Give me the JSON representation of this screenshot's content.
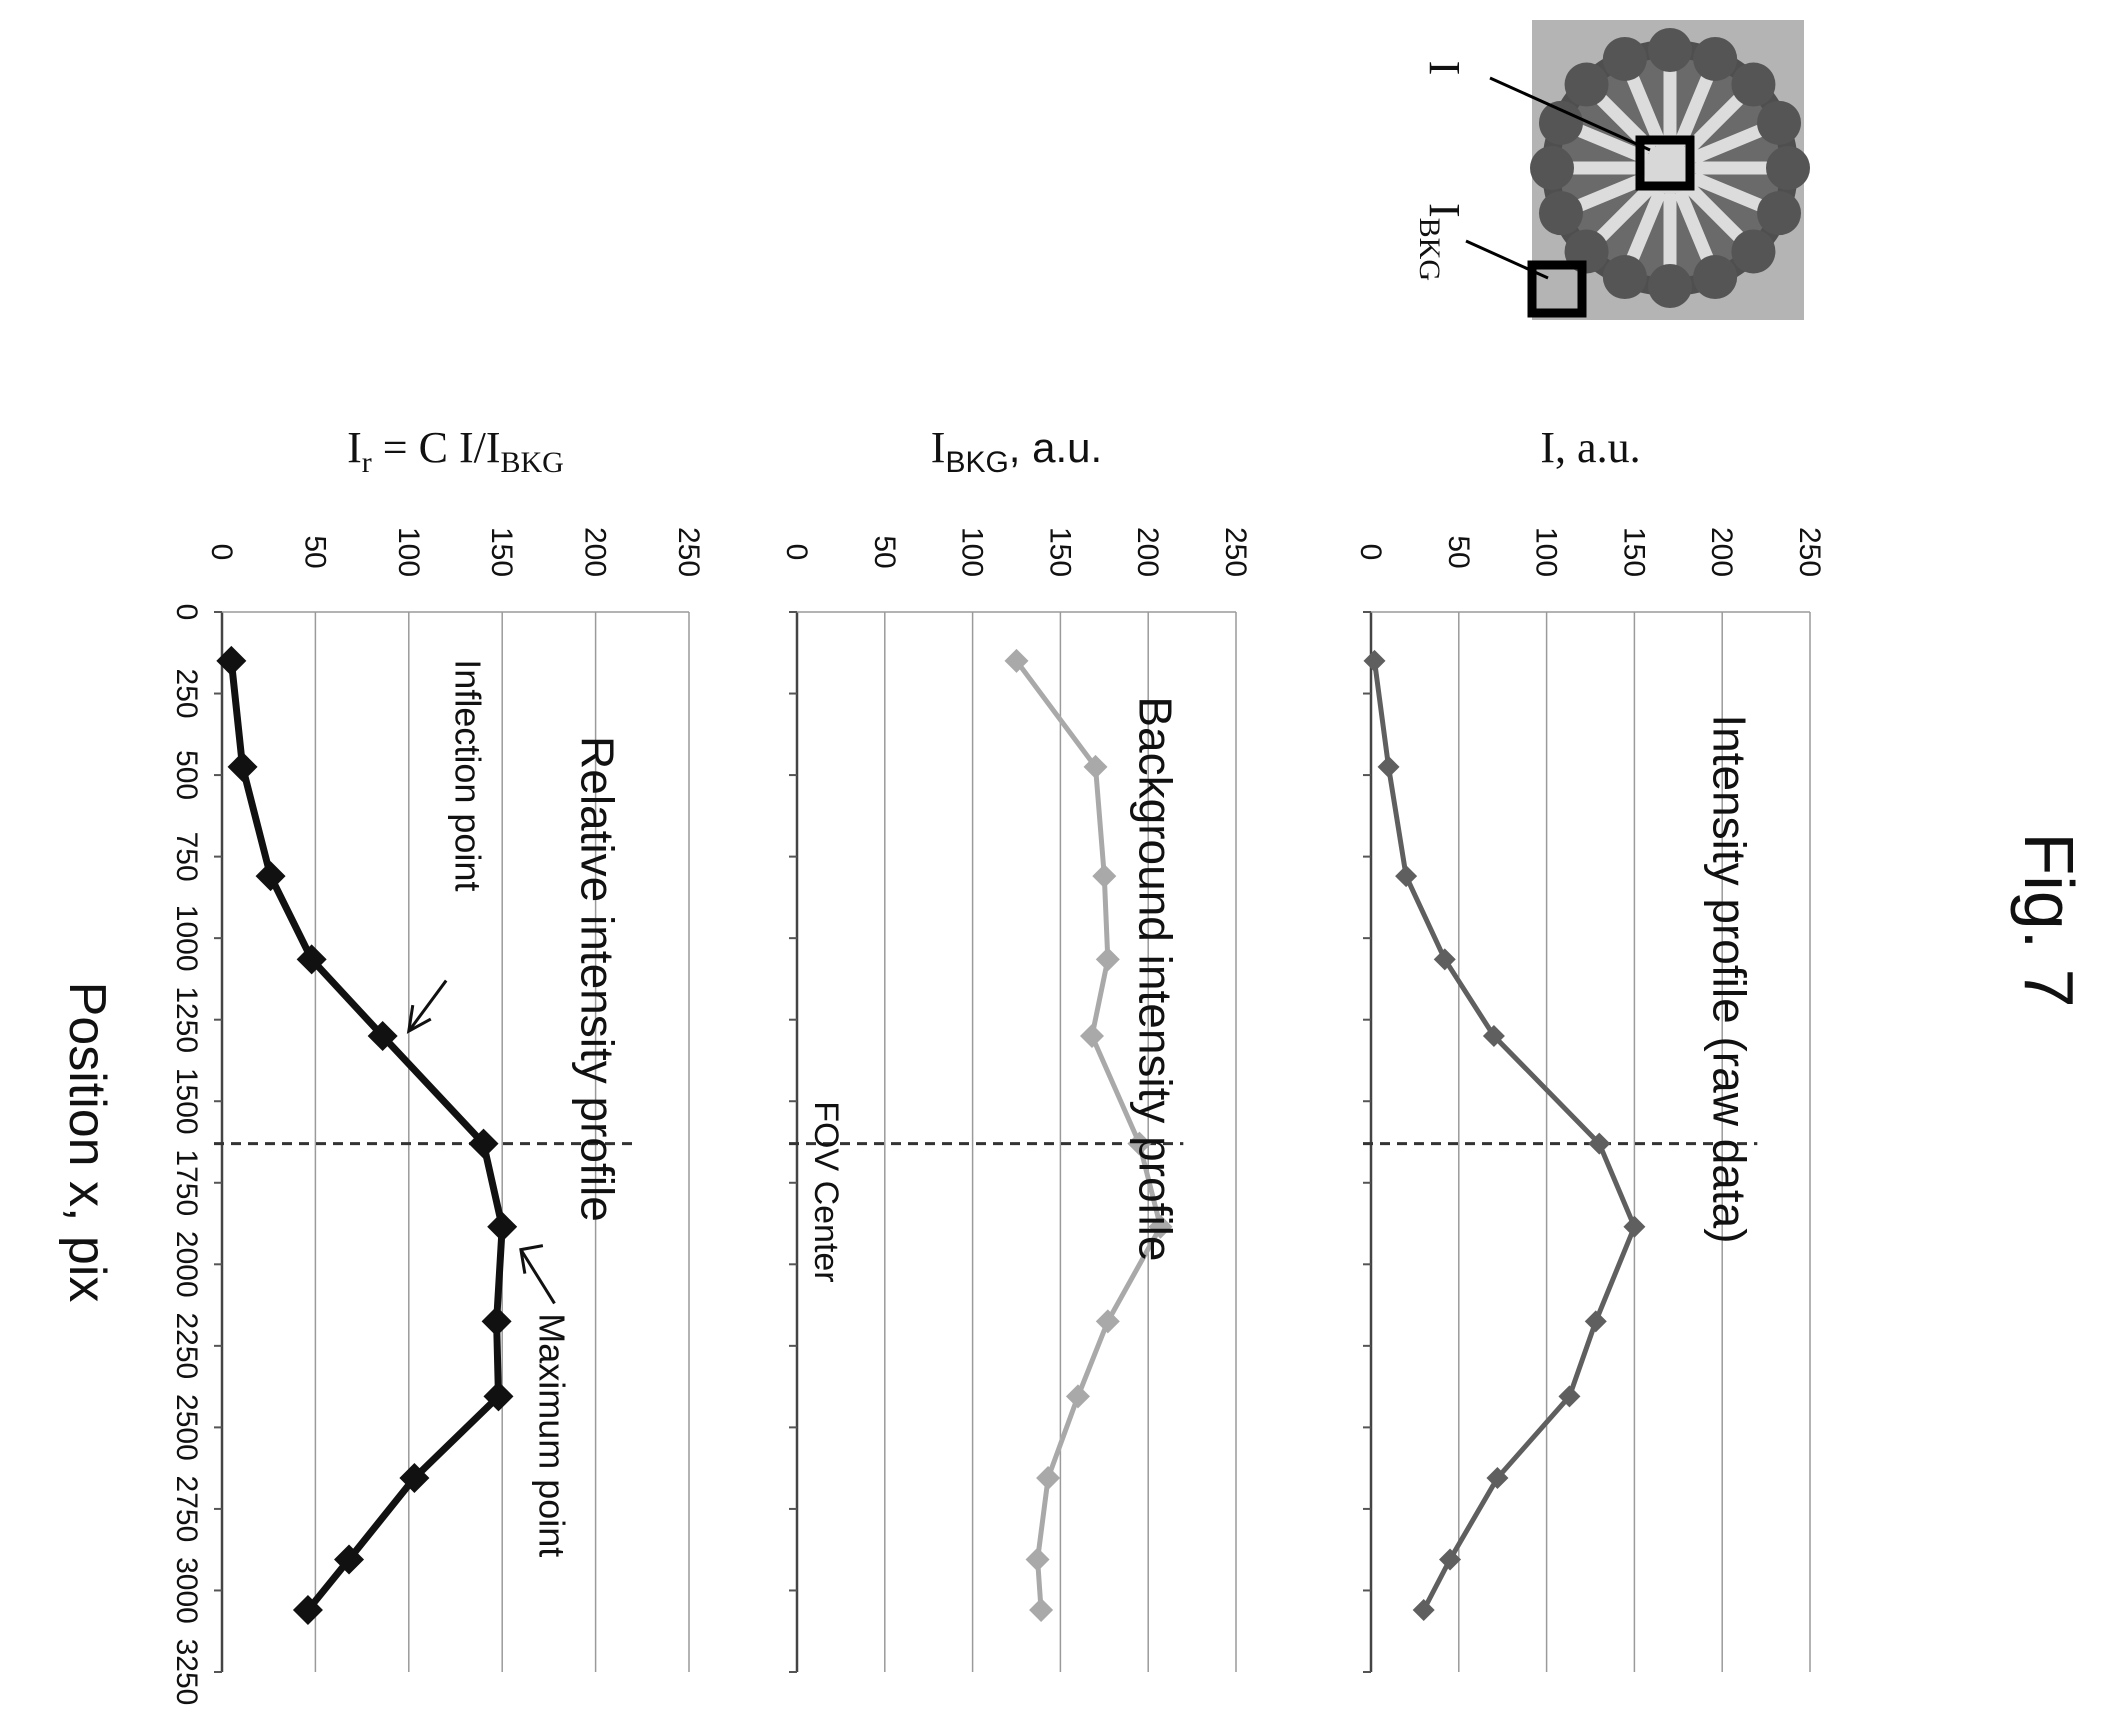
{
  "figure_label": "Fig. 7",
  "shared_axis": {
    "label": "Position x, pix",
    "ticks": [
      "0",
      "250",
      "500",
      "750",
      "1000",
      "1250",
      "1500",
      "1750",
      "2000",
      "2250",
      "2500",
      "2750",
      "3000",
      "3250"
    ],
    "range": [
      0,
      3250
    ]
  },
  "inset": {
    "marker_I": "I",
    "marker_IBKG_main": "I",
    "marker_IBKG_sub": "BKG"
  },
  "fov_label": "FOV Center",
  "annotations": {
    "inflection": "Inflection point",
    "maximum": "Maximum point"
  },
  "colors": {
    "raw": "#5f5f5f",
    "background": "#a9a9a9",
    "relative": "#111111",
    "fov_line": "#333333"
  },
  "chart_data": [
    {
      "type": "line",
      "title": "Intensity profile (raw data)",
      "ylabel": "I, a.u.",
      "ylim": [
        0,
        250
      ],
      "yticks": [
        "0",
        "50",
        "100",
        "150",
        "200",
        "250"
      ],
      "fov_center_x": 1630,
      "x": [
        150,
        475,
        810,
        1065,
        1300,
        1630,
        1885,
        2175,
        2405,
        2655,
        2905,
        3060
      ],
      "series": [
        {
          "values": [
            2,
            10,
            20,
            42,
            70,
            130,
            150,
            128,
            113,
            72,
            45,
            30
          ]
        }
      ]
    },
    {
      "type": "line",
      "title": "Background intensity profile",
      "ylabel_main": "I",
      "ylabel_sub": "BKG",
      "ylabel_tail": ", a.u.",
      "ylim": [
        0,
        250
      ],
      "yticks": [
        "0",
        "50",
        "100",
        "150",
        "200",
        "250"
      ],
      "fov_center_x": 1630,
      "x": [
        150,
        475,
        810,
        1065,
        1300,
        1630,
        1885,
        2175,
        2405,
        2655,
        2905,
        3060
      ],
      "series": [
        {
          "values": [
            125,
            170,
            175,
            177,
            168,
            195,
            207,
            177,
            160,
            143,
            137,
            139
          ]
        }
      ]
    },
    {
      "type": "line",
      "title": "Relative intensity profile",
      "ylabel_main": "I",
      "ylabel_sub1": "r",
      "ylabel_mid": " = C I/I",
      "ylabel_sub2": "BKG",
      "ylim": [
        0,
        250
      ],
      "yticks": [
        "0",
        "50",
        "100",
        "150",
        "200",
        "250"
      ],
      "fov_center_x": 1630,
      "x": [
        150,
        475,
        810,
        1065,
        1300,
        1630,
        1885,
        2175,
        2405,
        2655,
        2905,
        3060
      ],
      "series": [
        {
          "values": [
            5,
            11,
            26,
            48,
            86,
            140,
            150,
            147,
            148,
            103,
            68,
            46
          ]
        }
      ]
    }
  ]
}
